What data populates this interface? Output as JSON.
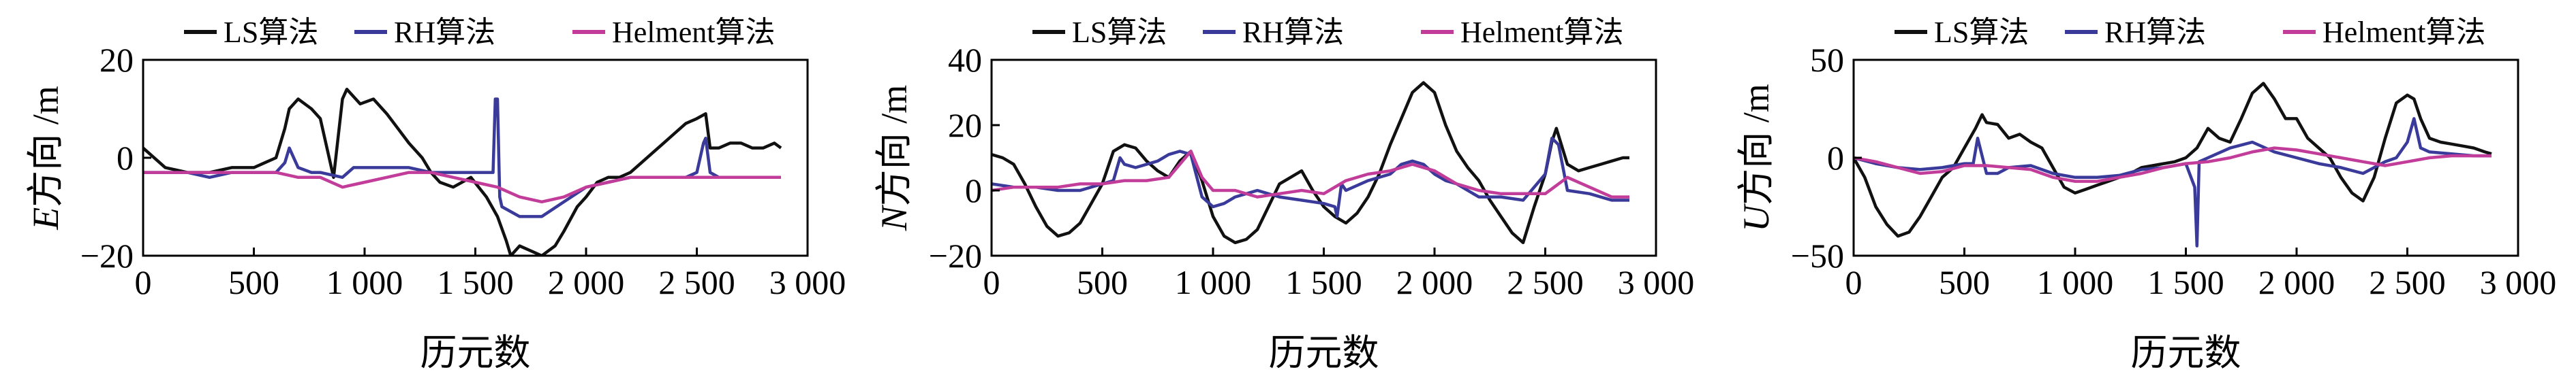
{
  "chart_data": [
    {
      "type": "line",
      "legend": [
        "LS算法",
        "RH算法",
        "Helment算法"
      ],
      "legend_position": "top",
      "colors": [
        "#111111",
        "#3a3a9a",
        "#c23c9a"
      ],
      "ylabel_var": "E",
      "ylabel_rest": "方向 /m",
      "xlabel": "历元数",
      "xlim": [
        0,
        3000
      ],
      "ylim": [
        -20,
        20
      ],
      "xticks": [
        0,
        500,
        1000,
        1500,
        2000,
        2500,
        3000
      ],
      "xtick_labels": [
        "0",
        "500",
        "1 000",
        "1 500",
        "2 000",
        "2 500",
        "3 000"
      ],
      "yticks": [
        -20,
        0,
        20
      ],
      "ytick_labels": [
        "−20",
        "0",
        "20"
      ],
      "grid": false,
      "series": [
        {
          "name": "LS算法",
          "x": [
            0,
            100,
            200,
            300,
            400,
            500,
            600,
            640,
            660,
            700,
            760,
            800,
            860,
            880,
            900,
            920,
            980,
            1040,
            1100,
            1150,
            1200,
            1260,
            1300,
            1340,
            1400,
            1480,
            1550,
            1600,
            1640,
            1660,
            1700,
            1750,
            1800,
            1860,
            1900,
            1960,
            2000,
            2050,
            2100,
            2150,
            2200,
            2250,
            2300,
            2350,
            2400,
            2450,
            2500,
            2540,
            2560,
            2600,
            2650,
            2700,
            2750,
            2800,
            2850,
            2880
          ],
          "values": [
            2,
            -2,
            -3,
            -3,
            -2,
            -2,
            0,
            6,
            10,
            12,
            10,
            8,
            -4,
            4,
            12,
            14,
            11,
            12,
            9,
            6,
            3,
            0,
            -3,
            -5,
            -6,
            -4,
            -8,
            -12,
            -17,
            -20,
            -18,
            -19,
            -20,
            -18,
            -15,
            -10,
            -8,
            -5,
            -4,
            -4,
            -3,
            -1,
            1,
            3,
            5,
            7,
            8,
            9,
            2,
            2,
            3,
            3,
            2,
            2,
            3,
            2
          ]
        },
        {
          "name": "RH算法",
          "x": [
            0,
            100,
            200,
            300,
            400,
            500,
            600,
            640,
            660,
            700,
            760,
            800,
            900,
            950,
            1000,
            1100,
            1200,
            1300,
            1400,
            1500,
            1580,
            1590,
            1600,
            1610,
            1620,
            1700,
            1800,
            1900,
            2000,
            2100,
            2200,
            2300,
            2400,
            2450,
            2500,
            2530,
            2540,
            2560,
            2600,
            2700,
            2800,
            2880
          ],
          "values": [
            -3,
            -3,
            -3,
            -4,
            -3,
            -3,
            -3,
            -1,
            2,
            -2,
            -3,
            -3,
            -4,
            -2,
            -2,
            -2,
            -2,
            -3,
            -3,
            -3,
            -3,
            12,
            12,
            -8,
            -10,
            -12,
            -12,
            -9,
            -6,
            -5,
            -4,
            -4,
            -4,
            -4,
            -3,
            3,
            4,
            -3,
            -4,
            -4,
            -4,
            -4
          ]
        },
        {
          "name": "Helment算法",
          "x": [
            0,
            100,
            200,
            300,
            400,
            500,
            600,
            700,
            800,
            900,
            1000,
            1100,
            1200,
            1300,
            1400,
            1500,
            1600,
            1700,
            1800,
            1900,
            2000,
            2100,
            2200,
            2300,
            2400,
            2500,
            2600,
            2700,
            2800,
            2880
          ],
          "values": [
            -3,
            -3,
            -3,
            -3,
            -3,
            -3,
            -3,
            -4,
            -4,
            -6,
            -5,
            -4,
            -3,
            -3,
            -4,
            -5,
            -6,
            -8,
            -9,
            -8,
            -6,
            -5,
            -4,
            -4,
            -4,
            -4,
            -4,
            -4,
            -4,
            -4
          ]
        }
      ]
    },
    {
      "type": "line",
      "legend": [
        "LS算法",
        "RH算法",
        "Helment算法"
      ],
      "legend_position": "top",
      "colors": [
        "#111111",
        "#3a3a9a",
        "#c23c9a"
      ],
      "ylabel_var": "N",
      "ylabel_rest": "方向 /m",
      "xlabel": "历元数",
      "xlim": [
        0,
        3000
      ],
      "ylim": [
        -20,
        40
      ],
      "xticks": [
        0,
        500,
        1000,
        1500,
        2000,
        2500,
        3000
      ],
      "xtick_labels": [
        "0",
        "500",
        "1 000",
        "1 500",
        "2 000",
        "2 500",
        "3 000"
      ],
      "yticks": [
        -20,
        0,
        20,
        40
      ],
      "ytick_labels": [
        "−20",
        "0",
        "20",
        "40"
      ],
      "grid": false,
      "series": [
        {
          "name": "LS算法",
          "x": [
            0,
            50,
            100,
            150,
            200,
            250,
            300,
            350,
            400,
            450,
            500,
            550,
            600,
            650,
            700,
            750,
            800,
            850,
            900,
            950,
            1000,
            1050,
            1100,
            1150,
            1200,
            1250,
            1300,
            1350,
            1400,
            1450,
            1500,
            1550,
            1600,
            1650,
            1700,
            1750,
            1800,
            1850,
            1900,
            1950,
            2000,
            2050,
            2100,
            2150,
            2200,
            2250,
            2300,
            2350,
            2400,
            2450,
            2500,
            2530,
            2550,
            2600,
            2650,
            2700,
            2750,
            2800,
            2850,
            2880
          ],
          "values": [
            11,
            10,
            8,
            2,
            -5,
            -11,
            -14,
            -13,
            -10,
            -4,
            2,
            12,
            14,
            13,
            9,
            6,
            4,
            9,
            12,
            3,
            -8,
            -14,
            -16,
            -15,
            -12,
            -5,
            2,
            4,
            6,
            0,
            -5,
            -8,
            -10,
            -7,
            -2,
            5,
            14,
            22,
            30,
            33,
            30,
            20,
            12,
            7,
            3,
            -3,
            -8,
            -13,
            -16,
            -5,
            5,
            15,
            19,
            8,
            6,
            7,
            8,
            9,
            10,
            10
          ]
        },
        {
          "name": "RH算法",
          "x": [
            0,
            100,
            200,
            300,
            400,
            500,
            550,
            580,
            600,
            650,
            700,
            750,
            800,
            850,
            900,
            950,
            1000,
            1050,
            1100,
            1150,
            1200,
            1300,
            1400,
            1500,
            1550,
            1560,
            1580,
            1600,
            1700,
            1800,
            1850,
            1900,
            1950,
            2000,
            2050,
            2100,
            2200,
            2300,
            2400,
            2500,
            2530,
            2560,
            2600,
            2700,
            2800,
            2880
          ],
          "values": [
            2,
            1,
            1,
            0,
            0,
            2,
            3,
            10,
            8,
            7,
            8,
            9,
            11,
            12,
            11,
            -2,
            -5,
            -4,
            -2,
            -1,
            0,
            -2,
            -3,
            -4,
            -5,
            -8,
            2,
            0,
            3,
            5,
            8,
            9,
            8,
            5,
            3,
            2,
            -2,
            -2,
            -3,
            5,
            16,
            14,
            0,
            -1,
            -3,
            -3
          ]
        },
        {
          "name": "Helment算法",
          "x": [
            0,
            100,
            200,
            300,
            400,
            500,
            600,
            700,
            800,
            850,
            900,
            950,
            1000,
            1100,
            1200,
            1300,
            1400,
            1500,
            1600,
            1700,
            1800,
            1900,
            2000,
            2100,
            2200,
            2300,
            2400,
            2500,
            2600,
            2700,
            2800,
            2880
          ],
          "values": [
            0,
            1,
            1,
            1,
            2,
            2,
            3,
            3,
            4,
            8,
            12,
            4,
            0,
            0,
            -2,
            -1,
            0,
            -1,
            3,
            5,
            6,
            8,
            6,
            2,
            0,
            -1,
            -1,
            -1,
            4,
            1,
            -2,
            -2
          ]
        }
      ]
    },
    {
      "type": "line",
      "legend": [
        "LS算法",
        "RH算法",
        "Helment算法"
      ],
      "legend_position": "top",
      "colors": [
        "#111111",
        "#3a3a9a",
        "#c23c9a"
      ],
      "ylabel_var": "U",
      "ylabel_rest": "方向 /m",
      "xlabel": "历元数",
      "xlim": [
        0,
        3000
      ],
      "ylim": [
        -50,
        50
      ],
      "xticks": [
        0,
        500,
        1000,
        1500,
        2000,
        2500,
        3000
      ],
      "xtick_labels": [
        "0",
        "500",
        "1 000",
        "1 500",
        "2 000",
        "2 500",
        "3 000"
      ],
      "yticks": [
        -50,
        0,
        50
      ],
      "ytick_labels": [
        "−50",
        "0",
        "50"
      ],
      "grid": false,
      "series": [
        {
          "name": "LS算法",
          "x": [
            0,
            50,
            100,
            150,
            200,
            250,
            300,
            350,
            400,
            450,
            500,
            550,
            580,
            600,
            650,
            700,
            750,
            800,
            850,
            900,
            950,
            1000,
            1050,
            1100,
            1150,
            1200,
            1250,
            1300,
            1350,
            1400,
            1450,
            1500,
            1550,
            1600,
            1650,
            1700,
            1750,
            1800,
            1850,
            1900,
            1950,
            2000,
            2050,
            2100,
            2150,
            2200,
            2250,
            2300,
            2350,
            2400,
            2450,
            2500,
            2530,
            2560,
            2600,
            2650,
            2700,
            2750,
            2800,
            2850,
            2880
          ],
          "values": [
            0,
            -10,
            -25,
            -34,
            -40,
            -38,
            -30,
            -20,
            -10,
            -5,
            5,
            15,
            22,
            18,
            17,
            10,
            12,
            8,
            5,
            -5,
            -15,
            -18,
            -16,
            -14,
            -12,
            -10,
            -8,
            -5,
            -4,
            -3,
            -2,
            0,
            5,
            15,
            10,
            8,
            20,
            33,
            38,
            30,
            20,
            20,
            10,
            5,
            0,
            -10,
            -18,
            -22,
            -10,
            10,
            28,
            32,
            30,
            20,
            10,
            8,
            7,
            6,
            5,
            3,
            2
          ]
        },
        {
          "name": "RH算法",
          "x": [
            0,
            100,
            200,
            300,
            400,
            500,
            540,
            560,
            600,
            650,
            700,
            800,
            900,
            1000,
            1100,
            1200,
            1300,
            1400,
            1500,
            1540,
            1550,
            1560,
            1600,
            1700,
            1800,
            1900,
            2000,
            2100,
            2200,
            2300,
            2400,
            2450,
            2500,
            2530,
            2560,
            2600,
            2700,
            2800,
            2880
          ],
          "values": [
            0,
            -3,
            -5,
            -6,
            -5,
            -3,
            -3,
            10,
            -8,
            -8,
            -5,
            -4,
            -8,
            -10,
            -10,
            -9,
            -6,
            -5,
            -3,
            -15,
            -45,
            -2,
            0,
            5,
            8,
            3,
            0,
            -3,
            -5,
            -8,
            -2,
            0,
            8,
            20,
            5,
            3,
            2,
            1,
            1
          ]
        },
        {
          "name": "Helment算法",
          "x": [
            0,
            100,
            200,
            300,
            400,
            500,
            600,
            700,
            800,
            900,
            1000,
            1100,
            1200,
            1300,
            1400,
            1500,
            1600,
            1700,
            1800,
            1900,
            2000,
            2100,
            2200,
            2300,
            2400,
            2500,
            2600,
            2700,
            2800,
            2880
          ],
          "values": [
            0,
            -2,
            -5,
            -8,
            -7,
            -4,
            -4,
            -5,
            -6,
            -10,
            -12,
            -12,
            -10,
            -8,
            -5,
            -3,
            -2,
            0,
            3,
            5,
            4,
            2,
            0,
            -2,
            -4,
            -2,
            0,
            1,
            1,
            1
          ]
        }
      ]
    }
  ]
}
